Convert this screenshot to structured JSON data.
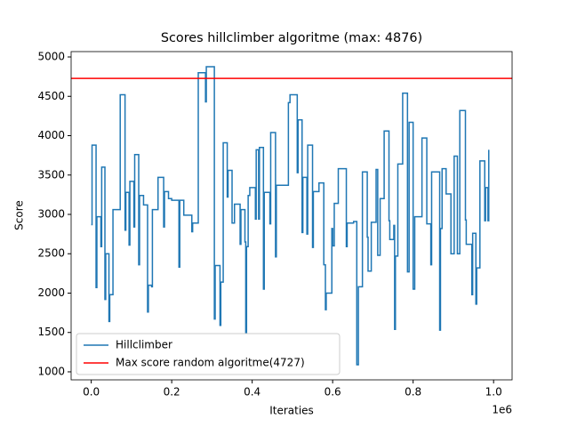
{
  "chart_data": {
    "type": "line",
    "drawstyle": "steps-post",
    "title": "Scores hillclimber algoritme (max: 4876)",
    "x_label": "Iteraties",
    "y_label": "Score",
    "x_offset_label": "1e6",
    "xlim": [
      -50000,
      1046000
    ],
    "ylim": [
      898,
      5068
    ],
    "xticks": [
      {
        "value": 0,
        "label": "0.0"
      },
      {
        "value": 200000,
        "label": "0.2"
      },
      {
        "value": 400000,
        "label": "0.4"
      },
      {
        "value": 600000,
        "label": "0.6"
      },
      {
        "value": 800000,
        "label": "0.8"
      },
      {
        "value": 1000000,
        "label": "1.0"
      }
    ],
    "yticks": [
      1000,
      1500,
      2000,
      2500,
      3000,
      3500,
      4000,
      4500,
      5000
    ],
    "legend": "lower left",
    "series": [
      {
        "name": "Hillclimber",
        "color": "#1f77b4",
        "x": [
          0,
          2000,
          12000,
          14000,
          24000,
          26000,
          34000,
          36000,
          44000,
          46000,
          54000,
          72000,
          84000,
          86000,
          94000,
          96000,
          106000,
          108000,
          118000,
          120000,
          130000,
          140000,
          142000,
          150000,
          152000,
          166000,
          180000,
          182000,
          192000,
          200000,
          218000,
          220000,
          230000,
          250000,
          252000,
          266000,
          284000,
          286000,
          306000,
          308000,
          320000,
          322000,
          328000,
          338000,
          340000,
          350000,
          356000,
          370000,
          372000,
          382000,
          384000,
          386000,
          390000,
          394000,
          408000,
          410000,
          416000,
          418000,
          428000,
          430000,
          444000,
          446000,
          458000,
          460000,
          490000,
          494000,
          512000,
          514000,
          524000,
          526000,
          536000,
          538000,
          550000,
          552000,
          566000,
          578000,
          582000,
          584000,
          598000,
          600000,
          604000,
          614000,
          634000,
          636000,
          652000,
          660000,
          664000,
          674000,
          686000,
          688000,
          696000,
          708000,
          712000,
          718000,
          728000,
          740000,
          742000,
          752000,
          754000,
          756000,
          762000,
          774000,
          786000,
          790000,
          800000,
          804000,
          822000,
          834000,
          844000,
          846000,
          866000,
          868000,
          872000,
          882000,
          894000,
          902000,
          910000,
          916000,
          930000,
          932000,
          946000,
          948000,
          956000,
          958000,
          966000,
          978000,
          980000,
          986000,
          988000
        ],
        "values": [
          2870,
          3880,
          2070,
          2970,
          2590,
          3600,
          1920,
          2500,
          1640,
          1980,
          3060,
          4520,
          2800,
          3280,
          2610,
          3420,
          2840,
          3760,
          2360,
          3240,
          3120,
          1760,
          2100,
          2080,
          3060,
          3470,
          2840,
          3290,
          3200,
          3180,
          2330,
          3180,
          2990,
          2780,
          2890,
          4800,
          4430,
          4876,
          1670,
          2350,
          1590,
          2140,
          3910,
          3220,
          3560,
          2890,
          3130,
          2620,
          3060,
          2650,
          1500,
          2590,
          3240,
          3340,
          2940,
          3820,
          2940,
          3850,
          2050,
          3280,
          2880,
          4040,
          2460,
          3370,
          4420,
          4520,
          3530,
          4200,
          2770,
          3470,
          2750,
          3880,
          2580,
          3290,
          3400,
          2360,
          1790,
          2000,
          2820,
          2600,
          3140,
          3580,
          2590,
          2890,
          2910,
          1090,
          2080,
          3540,
          2710,
          2280,
          2900,
          3570,
          2480,
          3200,
          4060,
          2920,
          2680,
          2860,
          1540,
          2470,
          3640,
          4540,
          2270,
          4170,
          2050,
          2970,
          3970,
          2880,
          2360,
          3540,
          1530,
          2820,
          3580,
          3260,
          2500,
          3740,
          2500,
          4320,
          2930,
          2620,
          1980,
          2760,
          1860,
          2320,
          3680,
          2920,
          3340,
          2920,
          3820
        ]
      }
    ],
    "hlines": [
      {
        "name": "Max score random algoritme(4727)",
        "value": 4727,
        "color": "#ff0000"
      }
    ]
  }
}
